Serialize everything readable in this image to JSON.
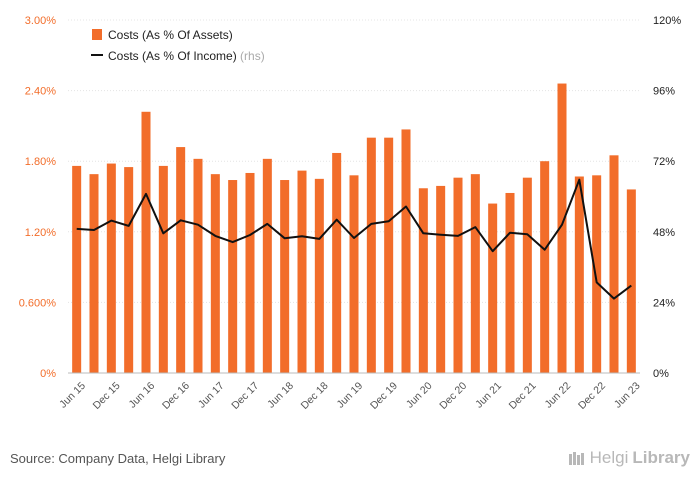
{
  "chart_data": {
    "type": "bar",
    "categories": [
      "Jun 15",
      "Sep 15",
      "Dec 15",
      "Mar 16",
      "Jun 16",
      "Sep 16",
      "Dec 16",
      "Mar 17",
      "Jun 17",
      "Sep 17",
      "Dec 17",
      "Mar 18",
      "Jun 18",
      "Sep 18",
      "Dec 18",
      "Mar 19",
      "Jun 19",
      "Sep 19",
      "Dec 19",
      "Mar 20",
      "Jun 20",
      "Sep 20",
      "Dec 20",
      "Mar 21",
      "Jun 21",
      "Sep 21",
      "Dec 21",
      "Mar 22",
      "Jun 22",
      "Sep 22",
      "Dec 22",
      "Mar 23",
      "Jun 23"
    ],
    "x_tick_labels": [
      "Jun 15",
      "Dec 15",
      "Jun 16",
      "Dec 16",
      "Jun 17",
      "Dec 17",
      "Jun 18",
      "Dec 18",
      "Jun 19",
      "Dec 19",
      "Jun 20",
      "Dec 20",
      "Jun 21",
      "Dec 21",
      "Jun 22",
      "Dec 22",
      "Jun 23"
    ],
    "series": [
      {
        "name": "Costs (As % Of Assets)",
        "kind": "bar",
        "axis": "left",
        "color": "#f26d2a",
        "values": [
          1.76,
          1.69,
          1.78,
          1.75,
          2.22,
          1.76,
          1.92,
          1.82,
          1.69,
          1.64,
          1.7,
          1.82,
          1.64,
          1.72,
          1.65,
          1.87,
          1.68,
          2.0,
          2.0,
          2.07,
          1.57,
          1.59,
          1.66,
          1.69,
          1.44,
          1.53,
          1.66,
          1.8,
          2.46,
          1.67,
          1.68,
          1.85,
          1.56
        ]
      },
      {
        "name": "Costs (As % Of Income)",
        "name_suffix": "(rhs)",
        "kind": "line",
        "axis": "right",
        "color": "#111111",
        "values": [
          49.0,
          48.6,
          51.8,
          50.0,
          60.9,
          47.5,
          51.9,
          50.4,
          46.6,
          44.5,
          46.9,
          50.7,
          45.8,
          46.5,
          45.6,
          52.1,
          45.9,
          50.7,
          51.6,
          56.6,
          47.5,
          47.0,
          46.6,
          49.6,
          41.4,
          47.7,
          47.2,
          41.9,
          50.4,
          65.7,
          30.8,
          25.3,
          29.7
        ]
      }
    ],
    "y_left": {
      "ylim": [
        0,
        3.0
      ],
      "ticks": [
        "0%",
        "0.600%",
        "1.20%",
        "1.80%",
        "2.40%",
        "3.00%"
      ],
      "tick_values": [
        0,
        0.6,
        1.2,
        1.8,
        2.4,
        3.0
      ]
    },
    "y_right": {
      "ylim": [
        0,
        120
      ],
      "ticks": [
        "0%",
        "24%",
        "48%",
        "72%",
        "96%",
        "120%"
      ],
      "tick_values": [
        0,
        24,
        48,
        72,
        96,
        120
      ]
    },
    "grid": true,
    "legend": "top-left"
  },
  "footer": {
    "source": "Source: Company Data, Helgi Library",
    "brand_a": "Helgi",
    "brand_b": "Library"
  }
}
